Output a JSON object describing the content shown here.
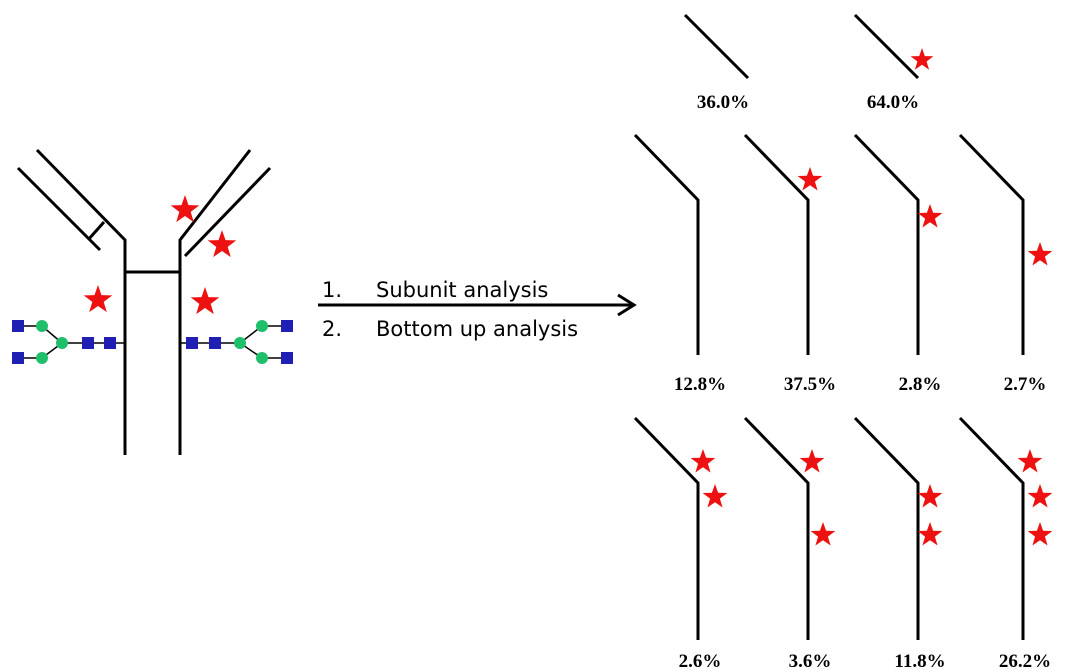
{
  "steps": [
    {
      "number": "1.",
      "label": "Subunit analysis"
    },
    {
      "number": "2.",
      "label": "Bottom up analysis"
    }
  ],
  "light_chain_variants": [
    "36.0%",
    "64.0%"
  ],
  "heavy_chain_variants": [
    [
      "12.8%",
      "37.5%",
      "2.8%",
      "2.7%"
    ],
    [
      "2.6%",
      "3.6%",
      "11.8%",
      "26.2%"
    ]
  ]
}
